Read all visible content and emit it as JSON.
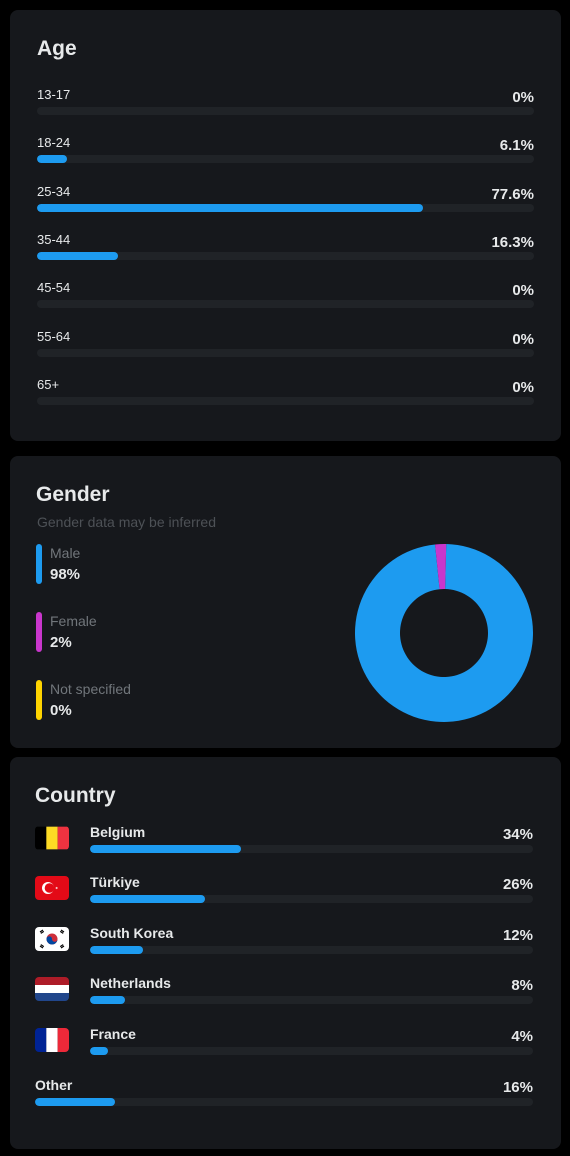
{
  "age": {
    "title": "Age",
    "rows": [
      {
        "label": "13-17",
        "value": "0%",
        "fraction": 0.0
      },
      {
        "label": "18-24",
        "value": "6.1%",
        "fraction": 0.061
      },
      {
        "label": "25-34",
        "value": "77.6%",
        "fraction": 0.776
      },
      {
        "label": "35-44",
        "value": "16.3%",
        "fraction": 0.163
      },
      {
        "label": "45-54",
        "value": "0%",
        "fraction": 0.0
      },
      {
        "label": "55-64",
        "value": "0%",
        "fraction": 0.0
      },
      {
        "label": "65+",
        "value": "0%",
        "fraction": 0.0
      }
    ]
  },
  "gender": {
    "title": "Gender",
    "subtitle": "Gender data may be inferred",
    "items": [
      {
        "label": "Male",
        "value": "98%",
        "fraction": 0.98,
        "color": "#1d9bf0"
      },
      {
        "label": "Female",
        "value": "2%",
        "fraction": 0.02,
        "color": "#c936cc"
      },
      {
        "label": "Not specified",
        "value": "0%",
        "fraction": 0.0,
        "color": "#ffd400"
      }
    ]
  },
  "country": {
    "title": "Country",
    "rows": [
      {
        "label": "Belgium",
        "value": "34%",
        "fraction": 0.34,
        "flag": "belgium-flag-icon"
      },
      {
        "label": "Türkiye",
        "value": "26%",
        "fraction": 0.26,
        "flag": "turkey-flag-icon"
      },
      {
        "label": "South Korea",
        "value": "12%",
        "fraction": 0.12,
        "flag": "south-korea-flag-icon"
      },
      {
        "label": "Netherlands",
        "value": "8%",
        "fraction": 0.08,
        "flag": "netherlands-flag-icon"
      },
      {
        "label": "France",
        "value": "4%",
        "fraction": 0.04,
        "flag": "france-flag-icon"
      },
      {
        "label": "Other",
        "value": "16%",
        "fraction": 0.16,
        "flag": ""
      }
    ]
  },
  "colors": {
    "accent": "#1d9bf0",
    "card": "#16181c",
    "track": "#202327"
  }
}
